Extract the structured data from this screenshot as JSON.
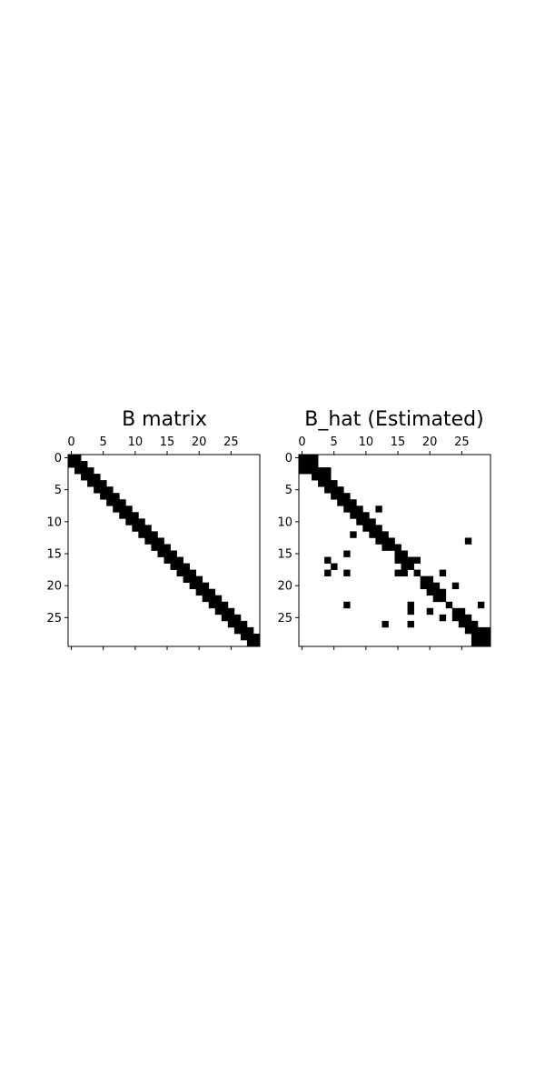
{
  "chart_data": [
    {
      "type": "heatmap",
      "title": "B matrix",
      "rows": 30,
      "cols": 30,
      "x_ticks": [
        0,
        5,
        10,
        15,
        20,
        25
      ],
      "y_ticks": [
        0,
        5,
        10,
        15,
        20,
        25
      ],
      "x_axis_position": "top",
      "colormap": {
        "zero": "#ffffff",
        "nonzero": "#000000"
      },
      "grid": false,
      "nonzero_cells": [
        [
          0,
          0
        ],
        [
          0,
          1
        ],
        [
          1,
          0
        ],
        [
          1,
          1
        ],
        [
          1,
          2
        ],
        [
          2,
          1
        ],
        [
          2,
          2
        ],
        [
          2,
          3
        ],
        [
          3,
          2
        ],
        [
          3,
          3
        ],
        [
          3,
          4
        ],
        [
          4,
          3
        ],
        [
          4,
          4
        ],
        [
          4,
          5
        ],
        [
          5,
          4
        ],
        [
          5,
          5
        ],
        [
          5,
          6
        ],
        [
          6,
          5
        ],
        [
          6,
          6
        ],
        [
          6,
          7
        ],
        [
          7,
          6
        ],
        [
          7,
          7
        ],
        [
          7,
          8
        ],
        [
          8,
          7
        ],
        [
          8,
          8
        ],
        [
          8,
          9
        ],
        [
          9,
          8
        ],
        [
          9,
          9
        ],
        [
          9,
          10
        ],
        [
          10,
          9
        ],
        [
          10,
          10
        ],
        [
          10,
          11
        ],
        [
          11,
          10
        ],
        [
          11,
          11
        ],
        [
          11,
          12
        ],
        [
          12,
          11
        ],
        [
          12,
          12
        ],
        [
          12,
          13
        ],
        [
          13,
          12
        ],
        [
          13,
          13
        ],
        [
          13,
          14
        ],
        [
          14,
          13
        ],
        [
          14,
          14
        ],
        [
          14,
          15
        ],
        [
          15,
          14
        ],
        [
          15,
          15
        ],
        [
          15,
          16
        ],
        [
          16,
          15
        ],
        [
          16,
          16
        ],
        [
          16,
          17
        ],
        [
          17,
          16
        ],
        [
          17,
          17
        ],
        [
          17,
          18
        ],
        [
          18,
          17
        ],
        [
          18,
          18
        ],
        [
          18,
          19
        ],
        [
          19,
          18
        ],
        [
          19,
          19
        ],
        [
          19,
          20
        ],
        [
          20,
          19
        ],
        [
          20,
          20
        ],
        [
          20,
          21
        ],
        [
          21,
          20
        ],
        [
          21,
          21
        ],
        [
          21,
          22
        ],
        [
          22,
          21
        ],
        [
          22,
          22
        ],
        [
          22,
          23
        ],
        [
          23,
          22
        ],
        [
          23,
          23
        ],
        [
          23,
          24
        ],
        [
          24,
          23
        ],
        [
          24,
          24
        ],
        [
          24,
          25
        ],
        [
          25,
          24
        ],
        [
          25,
          25
        ],
        [
          25,
          26
        ],
        [
          26,
          25
        ],
        [
          26,
          26
        ],
        [
          26,
          27
        ],
        [
          27,
          26
        ],
        [
          27,
          27
        ],
        [
          27,
          28
        ],
        [
          28,
          27
        ],
        [
          28,
          28
        ],
        [
          28,
          29
        ],
        [
          29,
          28
        ],
        [
          29,
          29
        ]
      ]
    },
    {
      "type": "heatmap",
      "title": "B_hat (Estimated)",
      "rows": 30,
      "cols": 30,
      "x_ticks": [
        0,
        5,
        10,
        15,
        20,
        25
      ],
      "y_ticks": [
        0,
        5,
        10,
        15,
        20,
        25
      ],
      "x_axis_position": "top",
      "colormap": {
        "zero": "#ffffff",
        "nonzero": "#000000"
      },
      "grid": false,
      "nonzero_cells": [
        [
          0,
          0
        ],
        [
          0,
          1
        ],
        [
          0,
          2
        ],
        [
          1,
          0
        ],
        [
          1,
          1
        ],
        [
          1,
          2
        ],
        [
          2,
          0
        ],
        [
          2,
          1
        ],
        [
          2,
          2
        ],
        [
          2,
          3
        ],
        [
          2,
          4
        ],
        [
          3,
          2
        ],
        [
          3,
          3
        ],
        [
          3,
          4
        ],
        [
          4,
          3
        ],
        [
          4,
          4
        ],
        [
          4,
          5
        ],
        [
          5,
          4
        ],
        [
          5,
          5
        ],
        [
          5,
          6
        ],
        [
          6,
          5
        ],
        [
          6,
          6
        ],
        [
          6,
          7
        ],
        [
          7,
          6
        ],
        [
          7,
          7
        ],
        [
          7,
          8
        ],
        [
          8,
          7
        ],
        [
          8,
          8
        ],
        [
          8,
          9
        ],
        [
          8,
          12
        ],
        [
          9,
          8
        ],
        [
          9,
          9
        ],
        [
          9,
          10
        ],
        [
          10,
          9
        ],
        [
          10,
          10
        ],
        [
          10,
          11
        ],
        [
          11,
          10
        ],
        [
          11,
          11
        ],
        [
          11,
          12
        ],
        [
          12,
          8
        ],
        [
          12,
          11
        ],
        [
          12,
          12
        ],
        [
          12,
          13
        ],
        [
          13,
          12
        ],
        [
          13,
          13
        ],
        [
          13,
          14
        ],
        [
          13,
          26
        ],
        [
          14,
          13
        ],
        [
          14,
          14
        ],
        [
          14,
          15
        ],
        [
          15,
          7
        ],
        [
          15,
          15
        ],
        [
          15,
          16
        ],
        [
          16,
          4
        ],
        [
          16,
          15
        ],
        [
          16,
          16
        ],
        [
          16,
          17
        ],
        [
          16,
          18
        ],
        [
          17,
          5
        ],
        [
          17,
          16
        ],
        [
          17,
          17
        ],
        [
          18,
          4
        ],
        [
          18,
          7
        ],
        [
          18,
          15
        ],
        [
          18,
          16
        ],
        [
          18,
          18
        ],
        [
          18,
          22
        ],
        [
          19,
          19
        ],
        [
          19,
          20
        ],
        [
          20,
          19
        ],
        [
          20,
          20
        ],
        [
          20,
          21
        ],
        [
          20,
          24
        ],
        [
          21,
          20
        ],
        [
          21,
          21
        ],
        [
          21,
          22
        ],
        [
          22,
          21
        ],
        [
          22,
          22
        ],
        [
          23,
          7
        ],
        [
          23,
          17
        ],
        [
          23,
          23
        ],
        [
          23,
          28
        ],
        [
          24,
          17
        ],
        [
          24,
          20
        ],
        [
          24,
          24
        ],
        [
          24,
          25
        ],
        [
          25,
          22
        ],
        [
          25,
          24
        ],
        [
          25,
          25
        ],
        [
          25,
          26
        ],
        [
          26,
          13
        ],
        [
          26,
          17
        ],
        [
          26,
          25
        ],
        [
          26,
          26
        ],
        [
          26,
          27
        ],
        [
          27,
          26
        ],
        [
          27,
          27
        ],
        [
          27,
          28
        ],
        [
          27,
          29
        ],
        [
          28,
          27
        ],
        [
          28,
          28
        ],
        [
          28,
          29
        ],
        [
          29,
          27
        ],
        [
          29,
          28
        ],
        [
          29,
          29
        ]
      ]
    }
  ]
}
